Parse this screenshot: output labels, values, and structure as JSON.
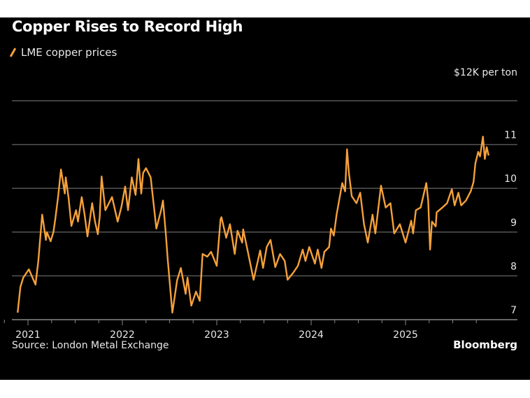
{
  "colors": {
    "background": "#000000",
    "line": "#f5a13a",
    "grid": "#555555",
    "text": "#e8e8e8"
  },
  "chart_data": {
    "type": "line",
    "title": "Copper Rises to Record High",
    "ylabel": "$12K per ton",
    "xlabel": "",
    "grid": true,
    "legend_placement": "top-left",
    "ylim": [
      7,
      12
    ],
    "yticks": [
      "11",
      "10",
      "9",
      "8",
      "7"
    ],
    "ytick_values": [
      11,
      10,
      9,
      8,
      7
    ],
    "xlim": [
      2020.83,
      2026.0
    ],
    "xticks": [
      "2021",
      "2022",
      "2023",
      "2024",
      "2025"
    ],
    "xtick_values": [
      2021,
      2022,
      2023,
      2024,
      2025
    ],
    "series": [
      {
        "name": "LME copper prices",
        "x": [
          2020.89,
          2020.92,
          2020.95,
          2021.01,
          2021.08,
          2021.11,
          2021.15,
          2021.19,
          2021.2,
          2021.24,
          2021.27,
          2021.29,
          2021.32,
          2021.35,
          2021.39,
          2021.4,
          2021.43,
          2021.46,
          2021.51,
          2021.53,
          2021.57,
          2021.6,
          2021.63,
          2021.68,
          2021.71,
          2021.74,
          2021.76,
          2021.78,
          2021.82,
          2021.89,
          2021.95,
          2021.99,
          2022.03,
          2022.06,
          2022.1,
          2022.14,
          2022.17,
          2022.2,
          2022.22,
          2022.25,
          2022.3,
          2022.36,
          2022.41,
          2022.43,
          2022.46,
          2022.48,
          2022.53,
          2022.58,
          2022.62,
          2022.67,
          2022.69,
          2022.73,
          2022.78,
          2022.82,
          2022.85,
          2022.9,
          2022.94,
          2023.0,
          2023.04,
          2023.05,
          2023.1,
          2023.14,
          2023.19,
          2023.22,
          2023.27,
          2023.28,
          2023.33,
          2023.39,
          2023.46,
          2023.49,
          2023.53,
          2023.57,
          2023.62,
          2023.67,
          2023.72,
          2023.75,
          2023.81,
          2023.86,
          2023.91,
          2023.94,
          2023.98,
          2024.04,
          2024.07,
          2024.11,
          2024.14,
          2024.19,
          2024.21,
          2024.24,
          2024.27,
          2024.31,
          2024.33,
          2024.36,
          2024.38,
          2024.4,
          2024.43,
          2024.48,
          2024.52,
          2024.56,
          2024.6,
          2024.65,
          2024.68,
          2024.74,
          2024.79,
          2024.84,
          2024.88,
          2024.94,
          2025.0,
          2025.06,
          2025.08,
          2025.11,
          2025.16,
          2025.22,
          2025.24,
          2025.26,
          2025.28,
          2025.32,
          2025.33,
          2025.39,
          2025.44,
          2025.49,
          2025.52,
          2025.56,
          2025.59,
          2025.64,
          2025.69,
          2025.72,
          2025.74,
          2025.77,
          2025.79,
          2025.82,
          2025.84,
          2025.86,
          2025.88
        ],
        "y": [
          7.16,
          7.75,
          7.96,
          8.15,
          7.8,
          8.34,
          9.4,
          8.82,
          9.0,
          8.79,
          9.0,
          9.3,
          9.82,
          10.43,
          9.88,
          10.25,
          9.78,
          9.14,
          9.5,
          9.24,
          9.8,
          9.4,
          8.9,
          9.66,
          9.24,
          8.95,
          9.35,
          10.27,
          9.5,
          9.8,
          9.24,
          9.58,
          10.04,
          9.5,
          10.25,
          9.85,
          10.67,
          9.88,
          10.35,
          10.46,
          10.25,
          9.08,
          9.5,
          9.72,
          8.97,
          8.39,
          7.16,
          7.9,
          8.18,
          7.59,
          7.96,
          7.32,
          7.64,
          7.43,
          8.5,
          8.44,
          8.55,
          8.23,
          9.29,
          9.34,
          8.87,
          9.18,
          8.5,
          9.03,
          8.76,
          9.06,
          8.55,
          7.91,
          8.58,
          8.18,
          8.66,
          8.82,
          8.2,
          8.5,
          8.34,
          7.91,
          8.07,
          8.23,
          8.6,
          8.34,
          8.66,
          8.28,
          8.6,
          8.18,
          8.55,
          8.66,
          9.08,
          8.92,
          9.4,
          9.88,
          10.12,
          9.93,
          10.89,
          10.35,
          9.82,
          9.66,
          9.9,
          9.18,
          8.76,
          9.4,
          8.97,
          10.06,
          9.56,
          9.66,
          8.97,
          9.18,
          8.76,
          9.26,
          8.97,
          9.5,
          9.56,
          10.12,
          9.72,
          8.6,
          9.24,
          9.13,
          9.45,
          9.56,
          9.66,
          9.98,
          9.61,
          9.9,
          9.61,
          9.72,
          9.93,
          10.14,
          10.57,
          10.83,
          10.73,
          11.18,
          10.67,
          10.94,
          10.75
        ]
      }
    ]
  },
  "header": {
    "title": "Copper Rises to Record High",
    "legend_label": "LME copper prices",
    "unit_label": "$12K per ton"
  },
  "footer": {
    "source": "Source: London Metal Exchange",
    "brand": "Bloomberg"
  }
}
